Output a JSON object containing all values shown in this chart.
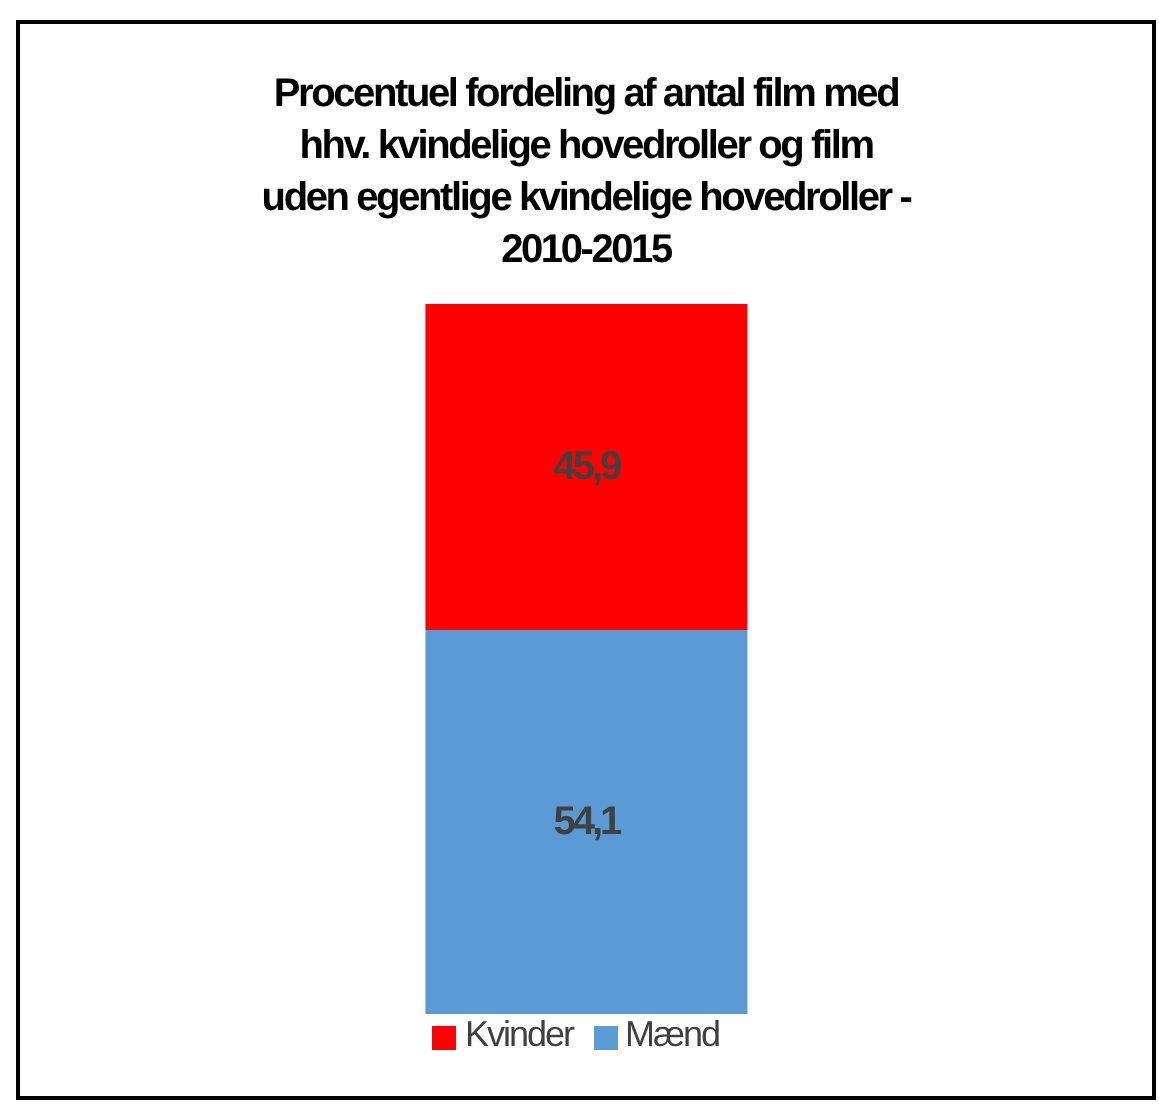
{
  "chart_data": {
    "type": "bar",
    "title": "Procentuel fordeling af antal film med hhv. kvindelige hovedroller og film uden egentlige kvindelige hovedroller - 2010-2015",
    "categories": [
      null
    ],
    "stacked": true,
    "legend": "bottom",
    "series": [
      {
        "name": "Mænd",
        "color": "#5b9bd5",
        "values": [
          54.1
        ],
        "value_labels": [
          "54,1"
        ]
      },
      {
        "name": "Kvinder",
        "color": "#ff0000",
        "values": [
          45.9
        ],
        "value_labels": [
          "45,9"
        ]
      }
    ]
  }
}
